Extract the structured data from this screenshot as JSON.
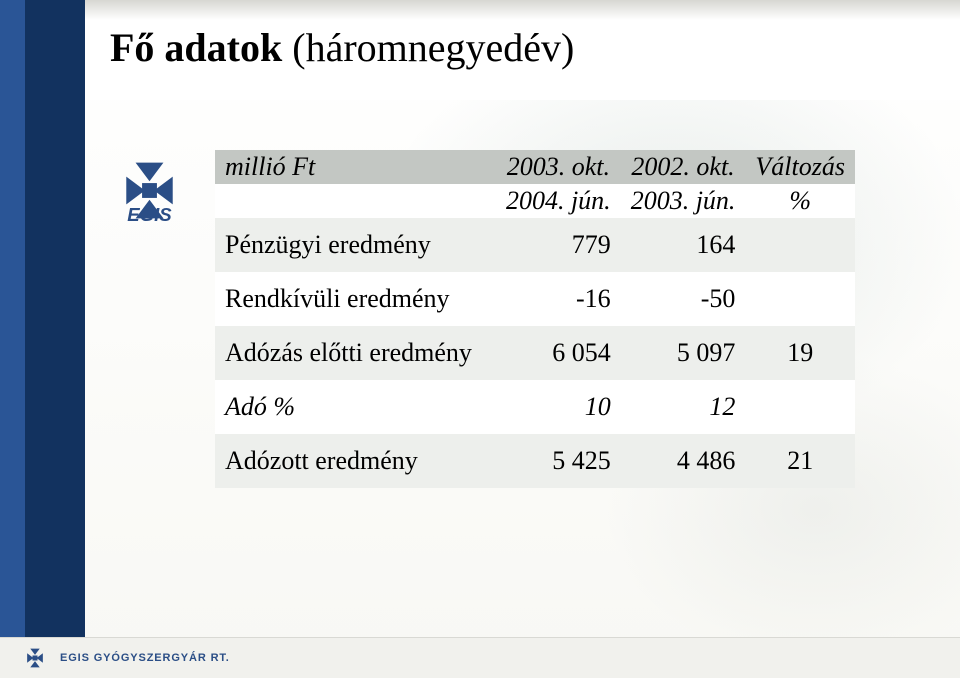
{
  "title": {
    "bold": "Fő adatok",
    "rest": " (háromnegyedév)"
  },
  "colors": {
    "sidebar_stripe1": "#2a5596",
    "sidebar_stripe2": "#12325f",
    "header_row_bg": "#c3c7c3",
    "row_even_bg": "#edefec",
    "row_odd_bg": "#ffffff",
    "logo_primary": "#2b4e86",
    "logo_text": "#2b4e86"
  },
  "logo": {
    "name": "EGIS"
  },
  "table": {
    "head_r1": {
      "label": "millió Ft",
      "c1": "2003. okt.",
      "c2": "2002. okt.",
      "c3": "Változás"
    },
    "head_r2": {
      "label": "",
      "c1": "2004. jún.",
      "c2": "2003. jún.",
      "c3": "%"
    },
    "rows": [
      {
        "label": "Pénzügyi eredmény",
        "c1": "779",
        "c2": "164",
        "c3": "",
        "italic": false
      },
      {
        "label": "Rendkívüli eredmény",
        "c1": "-16",
        "c2": "-50",
        "c3": "",
        "italic": false
      },
      {
        "label": "Adózás előtti eredmény",
        "c1": "6 054",
        "c2": "5 097",
        "c3": "19",
        "italic": false
      },
      {
        "label": "Adó  %",
        "c1": "10",
        "c2": "12",
        "c3": "",
        "italic": true
      },
      {
        "label": "Adózott eredmény",
        "c1": "5 425",
        "c2": "4 486",
        "c3": "21",
        "italic": false
      }
    ]
  },
  "footer": {
    "company": "EGIS GYÓGYSZERGYÁR RT."
  }
}
